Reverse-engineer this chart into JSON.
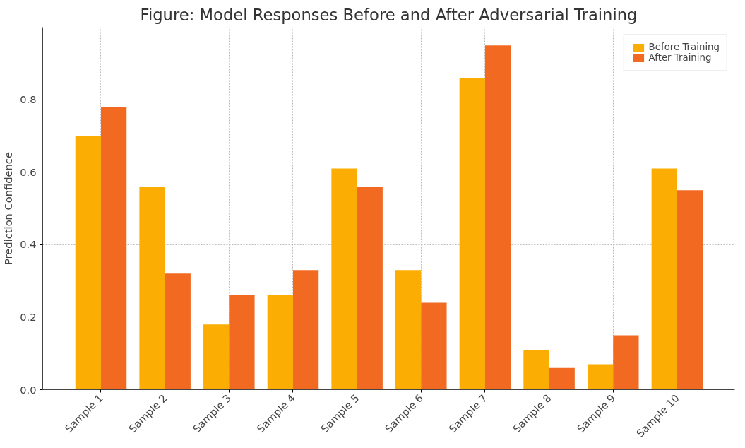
{
  "chart_data": {
    "type": "bar",
    "title": "Figure: Model Responses Before and After Adversarial Training",
    "ylabel": "Prediction Confidence",
    "categories": [
      "Sample 1",
      "Sample 2",
      "Sample 3",
      "Sample 4",
      "Sample 5",
      "Sample 6",
      "Sample 7",
      "Sample 8",
      "Sample 9",
      "Sample 10"
    ],
    "series": [
      {
        "name": "Before Training",
        "color": "#fcad03",
        "values": [
          0.7,
          0.56,
          0.18,
          0.26,
          0.61,
          0.33,
          0.86,
          0.11,
          0.07,
          0.61
        ]
      },
      {
        "name": "After Training",
        "color": "#f26a22",
        "values": [
          0.78,
          0.32,
          0.26,
          0.33,
          0.56,
          0.24,
          0.95,
          0.06,
          0.15,
          0.55
        ]
      }
    ],
    "ylim": [
      0,
      1.0
    ],
    "yticks": [
      {
        "value": 0,
        "label": "0.0"
      },
      0.2,
      0.4,
      0.6,
      0.8
    ],
    "grid": true,
    "legend": "top right"
  }
}
